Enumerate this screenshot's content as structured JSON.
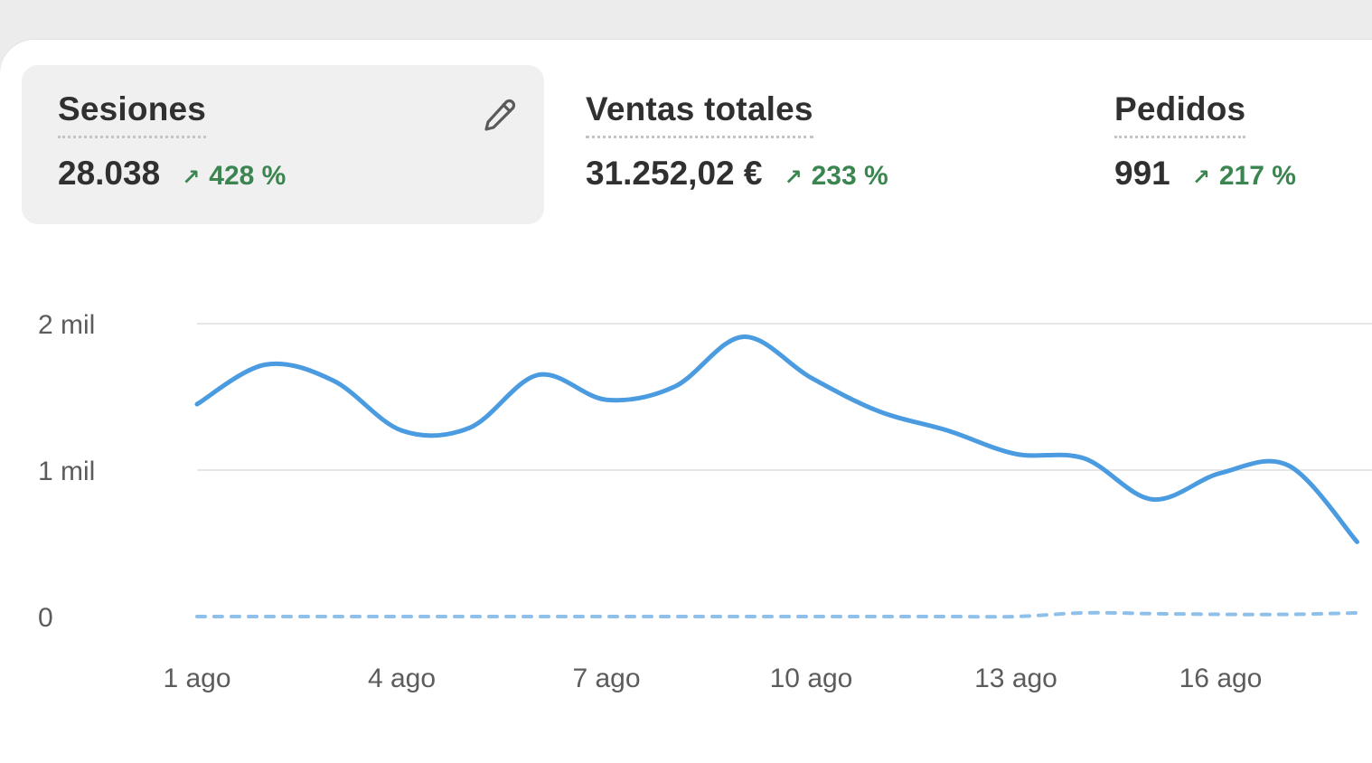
{
  "metrics": [
    {
      "label": "Sesiones",
      "value": "28.038",
      "change": "428 %"
    },
    {
      "label": "Ventas totales",
      "value": "31.252,02 €",
      "change": "233 %"
    },
    {
      "label": "Pedidos",
      "value": "991",
      "change": "217 %"
    }
  ],
  "icons": {
    "edit": "pencil-icon",
    "trend_up": "arrow-up-right-icon"
  },
  "colors": {
    "positive": "#3b8550",
    "series": "#4a9be0"
  },
  "chart_data": {
    "type": "line",
    "y_tick_labels": [
      "2 mil",
      "1 mil",
      "0"
    ],
    "x_tick_labels": [
      "1 ago",
      "4 ago",
      "7 ago",
      "10 ago",
      "13 ago",
      "16 ago"
    ],
    "ylim": [
      0,
      2000
    ],
    "grid": true,
    "series": [
      {
        "style": "solid",
        "x": [
          1,
          2,
          3,
          4,
          5,
          6,
          7,
          8,
          9,
          10,
          11,
          12,
          13,
          14,
          15,
          16,
          17,
          18
        ],
        "values": [
          1450,
          1720,
          1610,
          1270,
          1290,
          1650,
          1480,
          1570,
          1910,
          1630,
          1400,
          1270,
          1110,
          1080,
          800,
          980,
          1030,
          510
        ]
      },
      {
        "style": "dashed",
        "x": [
          1,
          2,
          3,
          4,
          5,
          6,
          7,
          8,
          9,
          10,
          11,
          12,
          13,
          14,
          15,
          16,
          17,
          18
        ],
        "values": [
          0,
          0,
          0,
          0,
          0,
          0,
          0,
          0,
          0,
          0,
          0,
          0,
          0,
          25,
          20,
          15,
          15,
          25
        ]
      }
    ]
  }
}
